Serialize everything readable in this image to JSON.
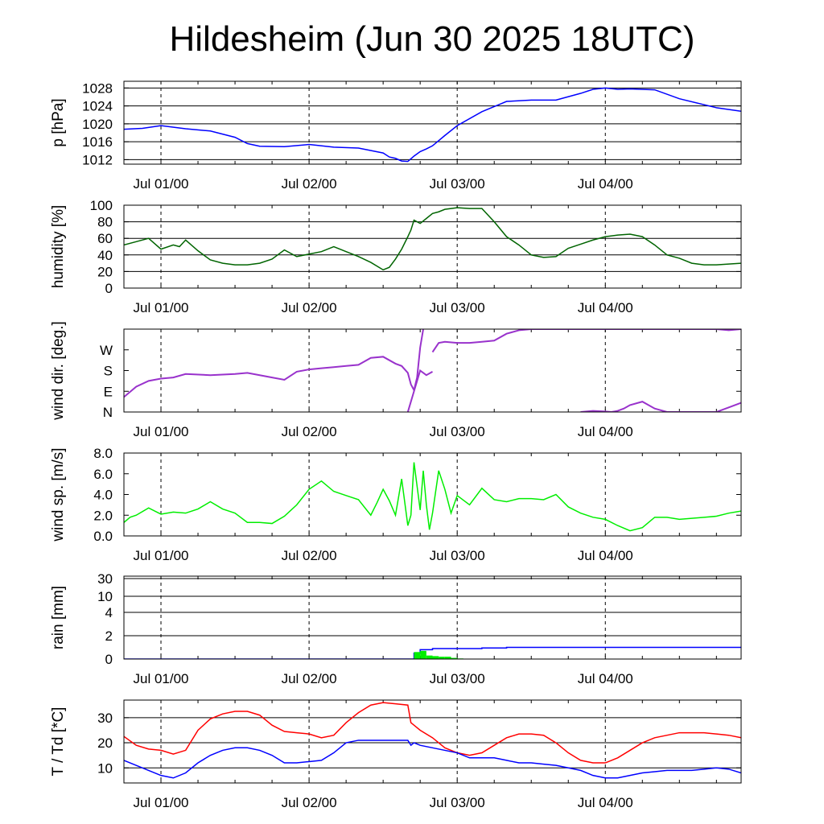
{
  "title": "Hildesheim (Jun 30 2025 18UTC)",
  "chart_data": [
    {
      "type": "line",
      "ylabel": "p [hPa]",
      "ylim": [
        1011,
        1029.5
      ],
      "yticks": [
        1012,
        1016,
        1020,
        1024,
        1028
      ],
      "ytick_labels": [
        "1012",
        "1016",
        "1020",
        "1024",
        "1028"
      ],
      "hgrid": [
        1012,
        1016,
        1020,
        1024,
        1028
      ],
      "xlim": [
        -6,
        94
      ],
      "x_tick_labels": [
        "Jul 01/00",
        "Jul 02/00",
        "Jul 03/00",
        "Jul 04/00"
      ],
      "x_tick_hours": [
        0,
        24,
        48,
        72
      ],
      "grid": true,
      "series": [
        {
          "color": "#0000ff",
          "x": [
            -6,
            -3,
            0,
            4,
            8,
            12,
            14,
            16,
            20,
            24,
            28,
            32,
            36,
            37,
            38,
            39,
            40,
            40.5,
            41,
            42,
            43,
            44,
            46,
            48,
            52,
            56,
            60,
            64,
            68,
            70,
            72,
            74,
            76,
            80,
            84,
            90,
            94
          ],
          "y": [
            1018.8,
            1019.0,
            1019.6,
            1018.9,
            1018.4,
            1017.0,
            1015.6,
            1015.0,
            1014.9,
            1015.4,
            1014.8,
            1014.6,
            1013.5,
            1012.6,
            1012.3,
            1011.7,
            1011.6,
            1012.2,
            1012.8,
            1013.8,
            1014.4,
            1015.1,
            1017.4,
            1019.6,
            1022.7,
            1025.0,
            1025.3,
            1025.3,
            1026.8,
            1027.7,
            1028.0,
            1027.7,
            1027.8,
            1027.6,
            1025.6,
            1023.6,
            1022.8
          ]
        }
      ]
    },
    {
      "type": "line",
      "ylabel": "humidity [%]",
      "ylim": [
        0,
        100
      ],
      "yticks": [
        0,
        20,
        40,
        60,
        80,
        100
      ],
      "ytick_labels": [
        "0",
        "20",
        "40",
        "60",
        "80",
        "100"
      ],
      "hgrid": [
        20,
        40,
        60,
        80
      ],
      "xlim": [
        -6,
        94
      ],
      "x_tick_labels": [
        "Jul 01/00",
        "Jul 02/00",
        "Jul 03/00",
        "Jul 04/00"
      ],
      "x_tick_hours": [
        0,
        24,
        48,
        72
      ],
      "grid": true,
      "series": [
        {
          "color": "#006400",
          "x": [
            -6,
            -4,
            -2,
            0,
            2,
            3,
            4,
            6,
            8,
            10,
            12,
            14,
            16,
            18,
            20,
            22,
            24,
            26,
            28,
            30,
            32,
            34,
            36,
            37,
            38,
            39,
            40,
            40.5,
            41,
            42,
            43,
            44,
            45,
            46,
            48,
            50,
            52,
            54,
            56,
            58,
            60,
            62,
            64,
            66,
            68,
            70,
            72,
            74,
            76,
            78,
            80,
            82,
            84,
            86,
            88,
            90,
            94
          ],
          "y": [
            52,
            56,
            60,
            47,
            52,
            50,
            58,
            45,
            34,
            30,
            28,
            28,
            30,
            35,
            46,
            38,
            41,
            44,
            50,
            44,
            38,
            31,
            22,
            25,
            35,
            47,
            62,
            70,
            82,
            78,
            84,
            90,
            92,
            95,
            97,
            96,
            96,
            80,
            62,
            52,
            40,
            37,
            38,
            48,
            53,
            58,
            62,
            64,
            65,
            62,
            52,
            40,
            36,
            30,
            28,
            28,
            30
          ]
        }
      ]
    },
    {
      "type": "scatter",
      "ylabel": "wind dir. [deg.]",
      "ylim": [
        0,
        360
      ],
      "yticks": [
        0,
        90,
        180,
        270
      ],
      "ytick_labels": [
        "N",
        "E",
        "S",
        "W"
      ],
      "hgrid": [],
      "xlim": [
        -6,
        94
      ],
      "x_tick_labels": [
        "Jul 01/00",
        "Jul 02/00",
        "Jul 03/00",
        "Jul 04/00"
      ],
      "x_tick_hours": [
        0,
        24,
        48,
        72
      ],
      "grid": true,
      "series": [
        {
          "color": "#9932cc",
          "x": [
            -6,
            -4,
            -2,
            0,
            2,
            4,
            8,
            12,
            14,
            16,
            18,
            20,
            22,
            24,
            26,
            28,
            30,
            32,
            34,
            36,
            38,
            39,
            40,
            40.5,
            41,
            41.5
          ],
          "y": [
            65,
            110,
            135,
            145,
            150,
            165,
            160,
            165,
            170,
            160,
            150,
            140,
            175,
            185,
            190,
            195,
            200,
            205,
            235,
            240,
            210,
            200,
            170,
            120,
            95,
            150
          ]
        },
        {
          "color": "#9932cc",
          "x": [
            41.5,
            42,
            42.5
          ],
          "y": [
            150,
            280,
            360
          ]
        },
        {
          "color": "#9932cc",
          "x": [
            40,
            41,
            42,
            43,
            44
          ],
          "y": [
            0,
            90,
            180,
            160,
            175
          ]
        },
        {
          "color": "#9932cc",
          "x": [
            44,
            45,
            46,
            48,
            50,
            52,
            54,
            56,
            58,
            60,
            62,
            64,
            66,
            68,
            70,
            72,
            74,
            76,
            78,
            80,
            82,
            84,
            86,
            88,
            90,
            92,
            94
          ],
          "y": [
            260,
            300,
            305,
            300,
            300,
            305,
            310,
            340,
            355,
            360,
            360,
            360,
            360,
            360,
            360,
            360,
            360,
            360,
            360,
            360,
            360,
            360,
            360,
            360,
            360,
            355,
            360
          ]
        },
        {
          "color": "#9932cc",
          "x": [
            68,
            70,
            72,
            73,
            74,
            75,
            76,
            78,
            80,
            82,
            84,
            86,
            88,
            90,
            92,
            94
          ],
          "y": [
            0,
            5,
            2,
            0,
            5,
            15,
            30,
            45,
            15,
            0,
            0,
            0,
            0,
            0,
            20,
            40
          ]
        }
      ]
    },
    {
      "type": "line",
      "ylabel": "wind sp. [m/s]",
      "ylim": [
        0,
        8
      ],
      "yticks": [
        0,
        2,
        4,
        6,
        8
      ],
      "ytick_labels": [
        "0.0",
        "2.0",
        "4.0",
        "6.0",
        "8.0"
      ],
      "hgrid": [],
      "xlim": [
        -6,
        94
      ],
      "x_tick_labels": [
        "Jul 01/00",
        "Jul 02/00",
        "Jul 03/00",
        "Jul 04/00"
      ],
      "x_tick_hours": [
        0,
        24,
        48,
        72
      ],
      "grid": true,
      "series": [
        {
          "color": "#00ee00",
          "x": [
            -6,
            -5,
            -4,
            -2,
            0,
            2,
            4,
            6,
            8,
            10,
            12,
            14,
            16,
            18,
            20,
            22,
            24,
            26,
            28,
            30,
            32,
            34,
            35,
            36,
            37,
            38,
            39,
            40,
            40.5,
            41,
            42,
            42.5,
            43,
            43.5,
            44,
            45,
            46,
            47,
            48,
            50,
            52,
            54,
            56,
            58,
            60,
            62,
            64,
            66,
            68,
            70,
            72,
            74,
            76,
            78,
            80,
            82,
            84,
            86,
            88,
            90,
            92,
            94
          ],
          "y": [
            1.3,
            1.8,
            2.0,
            2.7,
            2.1,
            2.3,
            2.2,
            2.6,
            3.3,
            2.6,
            2.2,
            1.3,
            1.3,
            1.2,
            1.9,
            3.0,
            4.5,
            5.3,
            4.3,
            3.9,
            3.5,
            2.0,
            3.2,
            4.5,
            3.4,
            2.0,
            5.5,
            1.0,
            2.0,
            7.1,
            2.5,
            6.3,
            3.0,
            0.6,
            2.2,
            6.3,
            4.5,
            2.2,
            3.9,
            3.0,
            4.6,
            3.5,
            3.3,
            3.6,
            3.6,
            3.5,
            4.0,
            2.8,
            2.2,
            1.8,
            1.6,
            1.0,
            0.5,
            0.8,
            1.8,
            1.8,
            1.6,
            1.7,
            1.8,
            1.9,
            2.2,
            2.4
          ]
        }
      ]
    },
    {
      "type": "line",
      "ylabel": "rain [mm]",
      "ylim": [
        0,
        32
      ],
      "yticks": [
        0,
        2,
        4,
        10,
        30
      ],
      "ytick_labels": [
        "0",
        "2",
        "4",
        "10",
        "30"
      ],
      "hgrid": [
        2,
        4,
        10,
        30
      ],
      "scale_note": "nonlinear",
      "xlim": [
        -6,
        94
      ],
      "x_tick_labels": [
        "Jul 01/00",
        "Jul 02/00",
        "Jul 03/00",
        "Jul 04/00"
      ],
      "x_tick_hours": [
        0,
        24,
        48,
        72
      ],
      "grid": true,
      "series": [
        {
          "color": "#0000ff",
          "type": "step",
          "x": [
            -6,
            40,
            41,
            42,
            44,
            48,
            52,
            56,
            60,
            64,
            68,
            72,
            80,
            94
          ],
          "y": [
            0,
            0,
            0.5,
            0.8,
            0.9,
            0.9,
            0.95,
            1.0,
            1.0,
            1.0,
            1.0,
            1.0,
            1.0,
            1.0
          ]
        },
        {
          "color": "#00ee00",
          "type": "bar",
          "x": [
            41,
            42,
            43,
            44,
            45,
            46,
            47,
            48
          ],
          "y": [
            0.6,
            0.7,
            0.3,
            0.25,
            0.2,
            0.2,
            0.1,
            0.05
          ]
        }
      ]
    },
    {
      "type": "line",
      "ylabel": "T / Td [*C]",
      "ylim": [
        4,
        37
      ],
      "yticks": [
        10,
        20,
        30
      ],
      "ytick_labels": [
        "10",
        "20",
        "30"
      ],
      "hgrid": [
        10,
        20,
        30
      ],
      "xlim": [
        -6,
        94
      ],
      "x_tick_labels": [
        "Jul 01/00",
        "Jul 02/00",
        "Jul 03/00",
        "Jul 04/00"
      ],
      "x_tick_hours": [
        0,
        24,
        48,
        72
      ],
      "grid": true,
      "series": [
        {
          "color": "#ff0000",
          "x": [
            -6,
            -4,
            -2,
            0,
            2,
            4,
            6,
            8,
            10,
            12,
            14,
            16,
            18,
            20,
            22,
            24,
            26,
            28,
            30,
            32,
            34,
            36,
            38,
            40,
            40.5,
            41,
            42,
            44,
            46,
            48,
            50,
            52,
            54,
            56,
            58,
            60,
            62,
            64,
            66,
            68,
            70,
            72,
            74,
            76,
            78,
            80,
            82,
            84,
            86,
            88,
            90,
            92,
            94
          ],
          "y": [
            22.5,
            19,
            17.5,
            17,
            15.5,
            17,
            25,
            29.5,
            31.5,
            32.5,
            32.5,
            31,
            27,
            24.5,
            24,
            23.5,
            22,
            23,
            28,
            32,
            35,
            36,
            35.5,
            35,
            28,
            27,
            25,
            22,
            18,
            16,
            15,
            16,
            19,
            22,
            23.5,
            23.5,
            23,
            20,
            16,
            13,
            12,
            12,
            14,
            17,
            20,
            22,
            23,
            24,
            24,
            24,
            23.5,
            23,
            22
          ]
        },
        {
          "color": "#0000ff",
          "x": [
            -6,
            -4,
            -2,
            0,
            2,
            4,
            6,
            8,
            10,
            12,
            14,
            16,
            18,
            20,
            22,
            24,
            26,
            28,
            30,
            32,
            34,
            36,
            38,
            40,
            40.5,
            41,
            42,
            44,
            46,
            48,
            50,
            52,
            54,
            56,
            58,
            60,
            62,
            64,
            66,
            68,
            70,
            72,
            74,
            76,
            78,
            80,
            82,
            84,
            86,
            88,
            90,
            92,
            94
          ],
          "y": [
            13,
            11,
            9,
            7,
            6,
            8,
            12,
            15,
            17,
            18,
            18,
            17,
            15,
            12,
            12,
            12.5,
            13,
            16,
            20,
            21,
            21,
            21,
            21,
            21,
            19,
            20,
            19,
            18,
            17,
            16,
            14,
            14,
            14,
            13,
            12,
            12,
            11.5,
            11,
            10,
            9,
            7,
            6,
            6,
            7,
            8,
            8.5,
            9,
            9,
            9,
            9.5,
            10,
            9.5,
            8
          ]
        }
      ]
    }
  ]
}
